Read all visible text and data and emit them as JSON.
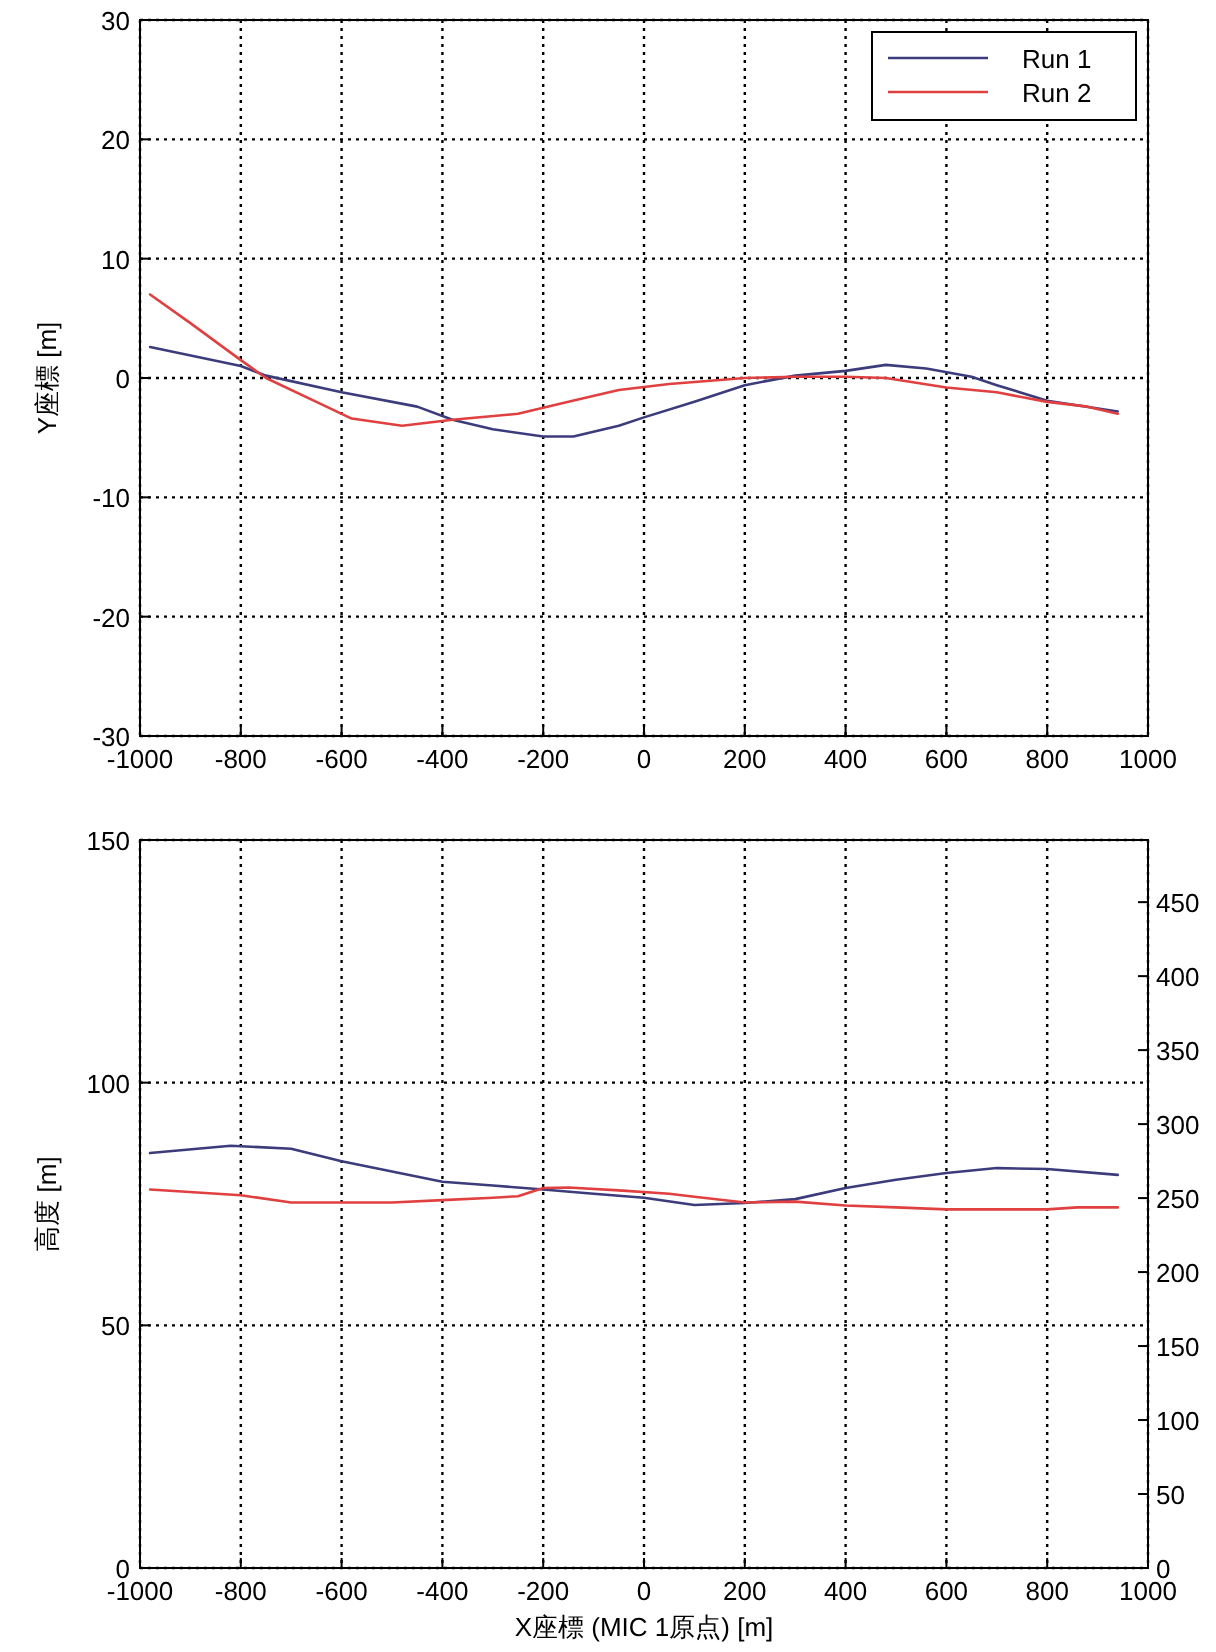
{
  "chart_data": [
    {
      "type": "line",
      "ylabel": "Y座標 [m]",
      "xlim": [
        -1000,
        1000
      ],
      "ylim": [
        -30,
        30
      ],
      "xticks": [
        -1000,
        -800,
        -600,
        -400,
        -200,
        0,
        200,
        400,
        600,
        800,
        1000
      ],
      "yticks": [
        -30,
        -20,
        -10,
        0,
        10,
        20,
        30
      ],
      "grid": true,
      "legend": "top right",
      "series": [
        {
          "name": "Run 1",
          "color": "#3c3c7c",
          "x": [
            -980,
            -800,
            -750,
            -600,
            -450,
            -380,
            -300,
            -200,
            -140,
            -50,
            0,
            100,
            200,
            300,
            400,
            480,
            560,
            650,
            700,
            800,
            940
          ],
          "values": [
            2.6,
            1,
            0.2,
            -1.2,
            -2.4,
            -3.5,
            -4.3,
            -4.9,
            -4.9,
            -4,
            -3.3,
            -2,
            -0.6,
            0.2,
            0.6,
            1.1,
            0.8,
            0.1,
            -0.6,
            -1.9,
            -2.8
          ]
        },
        {
          "name": "Run 2",
          "color": "#e04040",
          "x": [
            -980,
            -900,
            -800,
            -750,
            -650,
            -580,
            -480,
            -380,
            -250,
            -150,
            -50,
            50,
            200,
            300,
            400,
            480,
            600,
            700,
            800,
            880,
            940
          ],
          "values": [
            7,
            4.6,
            1.5,
            0,
            -2,
            -3.4,
            -4,
            -3.5,
            -3,
            -2,
            -1,
            -0.5,
            0,
            0.1,
            0.1,
            0,
            -0.8,
            -1.2,
            -2,
            -2.4,
            -3
          ]
        }
      ]
    },
    {
      "type": "line",
      "xlabel": "X座標 (MIC 1原点) [m]",
      "ylabel": "高度 [m]",
      "xlim": [
        -1000,
        1000
      ],
      "ylim": [
        0,
        150
      ],
      "xticks": [
        -1000,
        -800,
        -600,
        -400,
        -200,
        0,
        200,
        400,
        600,
        800,
        1000
      ],
      "yticks": [
        0,
        50,
        100,
        150
      ],
      "y2lim": [
        0,
        492
      ],
      "y2ticks": [
        0,
        50,
        100,
        150,
        200,
        250,
        300,
        350,
        400,
        450
      ],
      "grid": true,
      "series": [
        {
          "color": "#3c3c7c",
          "x": [
            -980,
            -820,
            -700,
            -600,
            -400,
            -300,
            -200,
            -100,
            0,
            100,
            200,
            300,
            400,
            500,
            600,
            700,
            800,
            940
          ],
          "values": [
            85.5,
            87,
            86.4,
            83.8,
            79.6,
            78.8,
            78,
            77.1,
            76.3,
            74.8,
            75.2,
            76,
            78.3,
            80,
            81.4,
            82.4,
            82.2,
            81
          ]
        },
        {
          "color": "#e04040",
          "x": [
            -980,
            -800,
            -700,
            -500,
            -400,
            -300,
            -250,
            -200,
            -150,
            -50,
            50,
            100,
            200,
            300,
            400,
            500,
            600,
            800,
            860,
            940
          ],
          "values": [
            78,
            76.8,
            75.3,
            75.3,
            75.8,
            76.3,
            76.6,
            78.3,
            78.4,
            77.8,
            77.1,
            76.5,
            75.3,
            75.5,
            74.7,
            74.3,
            73.9,
            73.9,
            74.3,
            74.3
          ]
        }
      ]
    }
  ]
}
